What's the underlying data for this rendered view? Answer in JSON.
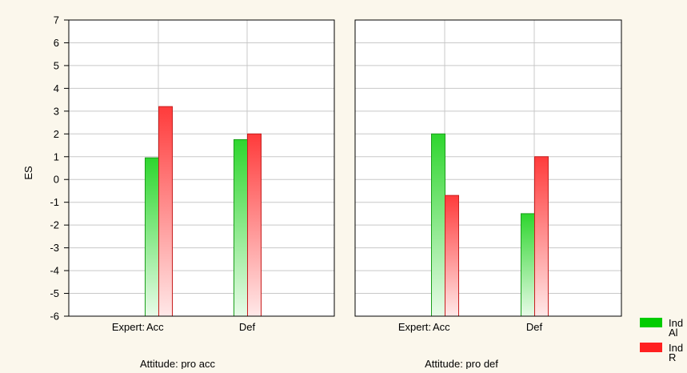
{
  "chart_data": {
    "type": "bar",
    "ylabel": "ES",
    "ylim": [
      -6,
      7
    ],
    "yticks": [
      "7",
      "6",
      "5",
      "4",
      "3",
      "2",
      "1",
      "0",
      "-1",
      "-2",
      "-3",
      "-4",
      "-5",
      "-6"
    ],
    "grid": true,
    "legend_position": "bottom-right",
    "legend": [
      {
        "label_lines": [
          "Ind",
          "Al"
        ],
        "color": "#00cc00"
      },
      {
        "label_lines": [
          "Ind",
          "R"
        ],
        "color": "#ff2020"
      }
    ],
    "x_group_prefix": "Expert:",
    "panels": [
      {
        "label": "Attitude: pro acc",
        "categories": [
          "Acc",
          "Def"
        ],
        "series": [
          {
            "values": [
              0.95,
              1.75
            ]
          },
          {
            "values": [
              3.2,
              2.0
            ]
          }
        ]
      },
      {
        "label": "Attitude: pro def",
        "categories": [
          "Acc",
          "Def"
        ],
        "series": [
          {
            "values": [
              2.0,
              -1.5
            ]
          },
          {
            "values": [
              -0.7,
              1.0
            ]
          }
        ]
      }
    ]
  },
  "colors": {
    "green_top": "#2ed62e",
    "green_bottom": "#e8fbe8",
    "red_top": "#ff3b3b",
    "red_bottom": "#ffe8e8",
    "grid": "#c8c8c8",
    "plot_bg": "#ffffff",
    "page_bg": "#fbf7ec"
  }
}
